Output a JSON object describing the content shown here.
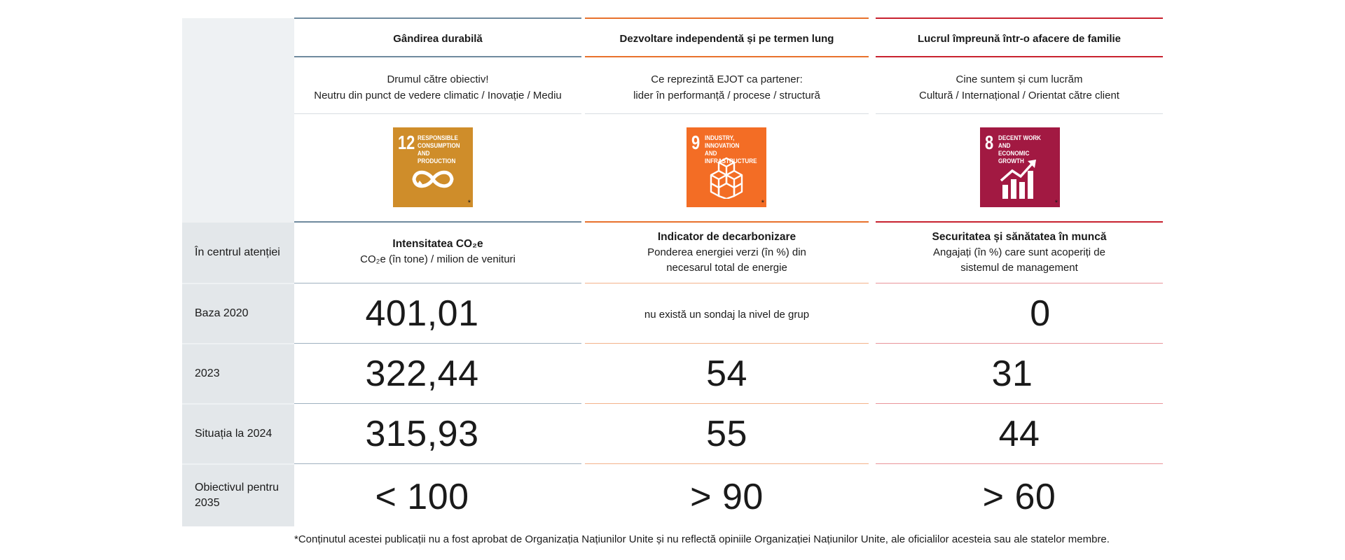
{
  "colors": {
    "col1": "#6f8a9e",
    "col2": "#e8712c",
    "col3": "#c8222f",
    "sdg12": "#cf8d2a",
    "sdg9": "#f36d25",
    "sdg8": "#a21942"
  },
  "columns": [
    {
      "heading": "Gândirea durabilă",
      "desc_line1": "Drumul către obiectiv!",
      "desc_line2": "Neutru din punct de vedere climatic / Inovație / Mediu",
      "sdg_number": "12",
      "sdg_title_line1": "RESPONSIBLE",
      "sdg_title_line2": "CONSUMPTION",
      "sdg_title_line3": "AND PRODUCTION",
      "sdg_icon": "infinity-icon",
      "focus_title": "Intensitatea CO₂e",
      "focus_sub_line1": "CO₂e (în tone) / milion de venituri",
      "focus_sub_line2": "",
      "baseline": "401,01",
      "y2023": "322,44",
      "status2024": "315,93",
      "target2035": "< 100"
    },
    {
      "heading": "Dezvoltare independentă și pe termen lung",
      "desc_line1": "Ce reprezintă EJOT ca partener:",
      "desc_line2": "lider în performanță / procese / structură",
      "sdg_number": "9",
      "sdg_title_line1": "INDUSTRY, INNOVATION",
      "sdg_title_line2": "AND INFRASTRUCTURE",
      "sdg_title_line3": "",
      "sdg_icon": "cubes-icon",
      "focus_title": "Indicator de decarbonizare",
      "focus_sub_line1": "Ponderea energiei verzi (în %) din",
      "focus_sub_line2": "necesarul total de energie",
      "baseline": "nu există un sondaj la nivel de grup",
      "y2023": "54",
      "status2024": "55",
      "target2035": "> 90"
    },
    {
      "heading": "Lucrul împreună într-o afacere de familie",
      "desc_line1": "Cine suntem și cum lucrăm",
      "desc_line2": "Cultură / Internațional / Orientat către client",
      "sdg_number": "8",
      "sdg_title_line1": "DECENT WORK AND",
      "sdg_title_line2": "ECONOMIC GROWTH",
      "sdg_title_line3": "",
      "sdg_icon": "growth-chart-icon",
      "focus_title": "Securitatea și sănătatea în muncă",
      "focus_sub_line1": "Angajați (în %) care sunt acoperiți de",
      "focus_sub_line2": "sistemul de management",
      "baseline": "0",
      "y2023": "31",
      "status2024": "44",
      "target2035": "> 60"
    }
  ],
  "row_labels": {
    "focus": "În centrul atenției",
    "baseline": "Baza 2020",
    "y2023": "2023",
    "status2024": "Situația la 2024",
    "target_line1": "Obiectivul pentru",
    "target_line2": "2035"
  },
  "sdg_star": "*",
  "footnote": "*Conținutul acestei publicații nu a fost aprobat de Organizația Națiunilor Unite și nu reflectă opiniile Organizației Națiunilor Unite, ale oficialilor acesteia sau ale statelor membre."
}
